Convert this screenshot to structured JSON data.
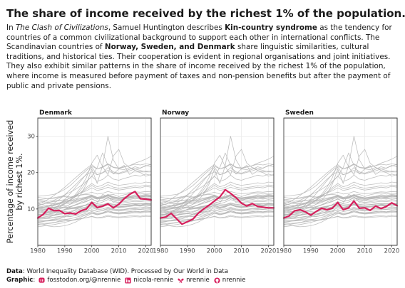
{
  "title": "The share of income received by the richest 1% of the population.",
  "intro": {
    "p1": "In ",
    "book": "The Clash of Civilizations",
    "p2": ", Samuel Huntington describes ",
    "term": "Kin-country syndrome",
    "p3": " as the tendency for countries of a common civilizational background to support each other in international conflicts. The Scandinavian countries of ",
    "countries": "Norway, Sweden, and Denmark",
    "p4": " share linguistic similarities, cultural traditions, and historical ties. Their cooperation is evident in regional organisations and joint initiatives. They also exhibit similar patterns in the share of income received by the richest 1% of the population, where income is measured before payment of taxes and non-pension benefits but after the payment of public and private pensions."
  },
  "footer": {
    "data_label": "Data",
    "data_text": ": World Inequality Database (WID). Processed by Our World in Data",
    "graphic_label": "Graphic",
    "graphic_colon": ":",
    "links": [
      {
        "icon": "mastodon-icon",
        "text": "fosstodon.org/@nrennie"
      },
      {
        "icon": "linkedin-icon",
        "text": "nicola-rennie"
      },
      {
        "icon": "bluesky-icon",
        "text": "nrennie"
      },
      {
        "icon": "github-icon",
        "text": "nrennie"
      }
    ]
  },
  "colors": {
    "highlight": "#d61f5c",
    "background_lines": "#b4b4b4",
    "panel_bg": "#ffffff",
    "grid": "#ebebeb",
    "text": "#1a1a1a"
  },
  "chart_data": {
    "type": "line",
    "title": "The share of income received by the richest 1% of the population.",
    "ylabel": "Percentage of income received by richest 1%.",
    "ylabel_lines": [
      "Percentage of income received",
      "by richest 1%."
    ],
    "xlabel": "",
    "xlim": [
      1980,
      2022
    ],
    "ylim": [
      0,
      35
    ],
    "x_ticks": [
      1980,
      1990,
      2000,
      2010,
      2020
    ],
    "y_ticks": [
      10,
      20,
      30
    ],
    "grid": true,
    "years": [
      1980,
      1982,
      1984,
      1986,
      1988,
      1990,
      1992,
      1994,
      1996,
      1998,
      2000,
      2002,
      2004,
      2006,
      2008,
      2010,
      2012,
      2014,
      2016,
      2018,
      2020,
      2022
    ],
    "panels": [
      {
        "name": "Denmark",
        "values": [
          7.5,
          8.5,
          10.2,
          9.5,
          9.6,
          8.7,
          8.9,
          8.6,
          9.5,
          10.0,
          11.8,
          10.4,
          10.8,
          11.4,
          10.3,
          11.3,
          12.8,
          14.0,
          14.8,
          12.8,
          12.7,
          12.5
        ]
      },
      {
        "name": "Norway",
        "values": [
          7.5,
          7.8,
          8.8,
          7.3,
          5.8,
          6.5,
          7.2,
          8.8,
          10.0,
          11.0,
          12.2,
          13.3,
          15.3,
          14.3,
          13.1,
          11.6,
          10.8,
          11.5,
          10.7,
          10.5,
          10.3,
          10.3
        ]
      },
      {
        "name": "Sweden",
        "values": [
          7.5,
          8.1,
          9.5,
          9.8,
          9.2,
          8.3,
          9.3,
          10.2,
          9.8,
          10.2,
          11.8,
          9.8,
          10.3,
          12.2,
          10.2,
          10.3,
          9.6,
          10.8,
          10.1,
          10.7,
          11.7,
          10.9
        ]
      }
    ],
    "background_series": [
      {
        "values": [
          9.2,
          9.6,
          10.0,
          10.3,
          10.7,
          11.0,
          10.6,
          11.1,
          11.6,
          12.0,
          12.8,
          12.0,
          12.4,
          13.1,
          12.6,
          12.3,
          12.8,
          13.0,
          13.3,
          13.1,
          13.6,
          13.4
        ]
      },
      {
        "values": [
          8.0,
          8.2,
          8.6,
          9.0,
          9.1,
          9.3,
          9.1,
          9.6,
          10.0,
          10.6,
          11.2,
          10.4,
          10.8,
          11.3,
          10.7,
          10.6,
          10.8,
          11.0,
          11.2,
          11.0,
          11.4,
          11.2
        ]
      },
      {
        "values": [
          6.3,
          6.5,
          6.9,
          7.2,
          7.6,
          8.0,
          7.9,
          8.3,
          8.8,
          9.2,
          9.8,
          9.3,
          9.6,
          10.2,
          9.8,
          9.6,
          9.8,
          10.0,
          10.1,
          9.9,
          10.3,
          10.1
        ]
      },
      {
        "values": [
          10.6,
          10.4,
          10.8,
          11.2,
          11.6,
          12.1,
          11.7,
          12.0,
          12.6,
          13.2,
          13.8,
          13.0,
          13.3,
          14.0,
          13.4,
          13.1,
          13.3,
          13.5,
          13.9,
          13.7,
          14.0,
          13.8
        ]
      },
      {
        "values": [
          5.6,
          5.7,
          6.0,
          6.2,
          6.7,
          7.1,
          7.3,
          7.7,
          8.1,
          8.5,
          9.0,
          8.6,
          8.8,
          9.3,
          8.9,
          8.7,
          8.9,
          9.0,
          9.2,
          9.1,
          9.3,
          9.2
        ]
      },
      {
        "values": [
          8.6,
          8.4,
          8.2,
          8.3,
          8.7,
          8.8,
          8.6,
          8.9,
          9.2,
          9.5,
          10.4,
          9.8,
          10.0,
          10.5,
          10.0,
          9.8,
          9.9,
          10.2,
          10.4,
          10.3,
          10.6,
          10.4
        ]
      },
      {
        "values": [
          11.4,
          11.1,
          10.9,
          11.2,
          11.6,
          11.9,
          12.2,
          12.8,
          13.0,
          13.3,
          13.6,
          13.2,
          13.5,
          13.8,
          14.0,
          13.4,
          13.9,
          14.2,
          14.4,
          14.1,
          14.3,
          14.2
        ]
      },
      {
        "values": [
          7.2,
          7.3,
          7.4,
          7.6,
          7.9,
          8.1,
          8.3,
          8.8,
          9.4,
          10.0,
          10.7,
          10.1,
          10.5,
          11.2,
          10.6,
          10.5,
          10.7,
          10.9,
          11.3,
          11.1,
          11.5,
          11.3
        ]
      },
      {
        "values": [
          9.8,
          9.9,
          10.1,
          10.2,
          10.4,
          10.4,
          10.2,
          10.5,
          10.8,
          11.1,
          11.4,
          10.9,
          11.0,
          11.6,
          11.1,
          11.0,
          11.2,
          11.4,
          11.5,
          11.4,
          11.6,
          11.5
        ]
      },
      {
        "values": [
          6.9,
          6.8,
          6.8,
          7.0,
          7.3,
          7.8,
          8.6,
          9.2,
          9.7,
          10.3,
          11.0,
          10.2,
          10.6,
          11.4,
          10.8,
          10.6,
          10.7,
          10.9,
          11.1,
          10.9,
          11.2,
          11.0
        ]
      },
      {
        "values": [
          12.2,
          12.0,
          11.8,
          12.0,
          12.3,
          12.6,
          12.3,
          12.5,
          12.8,
          13.1,
          13.4,
          13.0,
          13.3,
          13.7,
          13.3,
          13.0,
          13.2,
          13.4,
          13.6,
          13.5,
          13.7,
          13.6
        ]
      },
      {
        "values": [
          5.1,
          5.3,
          5.5,
          5.7,
          6.0,
          6.3,
          6.7,
          7.2,
          7.8,
          8.4,
          9.0,
          8.4,
          8.8,
          9.6,
          9.0,
          8.8,
          9.0,
          9.2,
          9.4,
          9.2,
          9.5,
          9.3
        ]
      },
      {
        "values": [
          8.9,
          9.1,
          9.5,
          9.9,
          10.3,
          10.6,
          10.3,
          10.4,
          10.7,
          11.0,
          11.5,
          11.1,
          11.2,
          11.7,
          11.3,
          11.1,
          11.2,
          11.3,
          11.5,
          11.4,
          11.6,
          11.5
        ]
      },
      {
        "values": [
          7.9,
          7.7,
          7.6,
          7.7,
          8.0,
          8.1,
          7.9,
          8.2,
          8.4,
          8.8,
          9.3,
          8.8,
          9.0,
          9.6,
          9.1,
          9.0,
          9.1,
          9.3,
          9.4,
          9.2,
          9.5,
          9.4
        ]
      },
      {
        "values": [
          10.1,
          10.3,
          10.7,
          11.0,
          11.4,
          11.7,
          11.3,
          11.8,
          12.4,
          13.0,
          13.6,
          12.8,
          13.1,
          13.8,
          13.2,
          12.9,
          13.1,
          13.3,
          13.6,
          13.4,
          13.8,
          13.6
        ]
      },
      {
        "values": [
          6.1,
          6.0,
          6.1,
          6.3,
          6.5,
          6.7,
          6.8,
          7.0,
          7.3,
          7.6,
          8.0,
          7.6,
          7.8,
          8.3,
          7.9,
          7.8,
          7.9,
          8.1,
          8.2,
          8.0,
          8.3,
          8.2
        ]
      },
      {
        "values": [
          9.5,
          9.2,
          9.0,
          9.1,
          9.4,
          9.8,
          10.5,
          11.1,
          11.6,
          12.2,
          12.7,
          12.1,
          12.4,
          13.0,
          12.5,
          12.2,
          12.4,
          12.6,
          12.9,
          12.7,
          13.0,
          12.8
        ]
      },
      {
        "values": [
          7.6,
          7.8,
          8.0,
          8.2,
          8.5,
          8.7,
          8.5,
          8.8,
          9.1,
          9.4,
          9.7,
          9.3,
          9.5,
          10.0,
          9.6,
          9.4,
          9.6,
          9.7,
          9.9,
          9.8,
          10.0,
          9.9
        ]
      },
      {
        "values": [
          11.0,
          11.3,
          11.8,
          12.2,
          12.4,
          12.5,
          12.1,
          12.2,
          12.5,
          12.8,
          13.1,
          12.7,
          12.9,
          13.2,
          12.8,
          12.6,
          12.7,
          12.9,
          13.0,
          12.9,
          13.1,
          13.0
        ]
      },
      {
        "values": [
          6.6,
          6.6,
          6.7,
          6.8,
          7.0,
          7.1,
          6.9,
          7.1,
          7.4,
          7.6,
          7.9,
          7.5,
          7.6,
          8.0,
          7.7,
          7.6,
          7.7,
          7.8,
          7.9,
          7.8,
          8.0,
          7.9
        ]
      },
      {
        "values": [
          8.3,
          8.5,
          8.6,
          8.8,
          9.3,
          9.9,
          10.2,
          10.1,
          10.3,
          10.5,
          10.9,
          10.5,
          10.7,
          11.1,
          10.6,
          10.4,
          10.5,
          10.7,
          10.9,
          10.8,
          11.0,
          10.9
        ]
      },
      {
        "values": [
          9.1,
          8.8,
          8.5,
          8.4,
          8.6,
          8.9,
          9.3,
          9.8,
          10.5,
          11.2,
          12.0,
          11.4,
          11.9,
          12.6,
          12.1,
          11.8,
          12.0,
          12.2,
          12.5,
          12.3,
          12.6,
          12.4
        ]
      },
      {
        "values": [
          11.8,
          11.6,
          11.5,
          11.4,
          11.7,
          12.3,
          13.1,
          13.8,
          14.4,
          15.0,
          15.8,
          15.1,
          15.4,
          16.0,
          15.5,
          15.2,
          15.4,
          15.7,
          16.0,
          15.8,
          16.2,
          16.0
        ]
      },
      {
        "values": [
          12.5,
          12.7,
          12.9,
          13.1,
          13.4,
          13.6,
          13.3,
          13.5,
          13.9,
          14.2,
          14.6,
          14.1,
          14.3,
          14.8,
          14.4,
          14.2,
          14.3,
          14.5,
          14.7,
          14.6,
          14.8,
          14.7
        ]
      },
      {
        "values": [
          13.2,
          13.0,
          12.8,
          12.9,
          13.2,
          13.4,
          13.0,
          13.4,
          13.8,
          14.0,
          13.8,
          13.2,
          13.1,
          13.6,
          13.0,
          12.8,
          12.9,
          13.1,
          13.3,
          13.2,
          13.4,
          13.3
        ]
      },
      {
        "values": [
          10.9,
          10.6,
          10.4,
          10.5,
          10.8,
          11.4,
          12.3,
          13.4,
          14.6,
          15.9,
          17.0,
          16.1,
          16.6,
          17.4,
          16.8,
          16.5,
          16.7,
          16.9,
          17.2,
          17.0,
          17.4,
          17.2
        ]
      },
      {
        "values": [
          5.8,
          5.6,
          5.3,
          5.1,
          5.2,
          5.4,
          5.8,
          6.4,
          7.2,
          8.0,
          8.8,
          8.4,
          8.7,
          9.2,
          8.8,
          8.6,
          8.7,
          8.8,
          9.0,
          8.9,
          9.1,
          9.0
        ]
      },
      {
        "values": [
          7.4,
          7.5,
          7.7,
          8.3,
          9.1,
          9.9,
          10.6,
          11.2,
          11.9,
          12.6,
          13.4,
          12.7,
          13.0,
          13.6,
          13.1,
          12.8,
          13.0,
          13.2,
          13.4,
          13.3,
          13.6,
          13.4
        ]
      },
      {
        "values": [
          9.4,
          9.7,
          10.2,
          10.9,
          11.6,
          12.3,
          13.0,
          13.7,
          14.5,
          15.4,
          16.5,
          15.6,
          15.9,
          16.7,
          16.0,
          15.7,
          15.9,
          16.1,
          16.4,
          16.2,
          16.6,
          16.4
        ]
      },
      {
        "values": [
          12.6,
          12.3,
          12.1,
          12.4,
          13.1,
          13.9,
          14.6,
          15.4,
          16.4,
          17.6,
          19.0,
          17.6,
          18.1,
          19.3,
          18.2,
          17.9,
          18.4,
          18.8,
          19.3,
          19.0,
          19.6,
          19.2
        ]
      },
      {
        "values": [
          8.2,
          8.6,
          9.2,
          10.0,
          11.2,
          12.6,
          14.2,
          16.0,
          17.8,
          19.6,
          21.5,
          19.4,
          19.9,
          21.4,
          20.2,
          19.8,
          20.4,
          20.9,
          21.6,
          21.2,
          22.0,
          21.6
        ]
      },
      {
        "values": [
          10.3,
          10.5,
          10.9,
          11.6,
          12.6,
          13.9,
          15.3,
          16.7,
          18.2,
          19.4,
          20.2,
          19.4,
          20.0,
          20.6,
          19.8,
          19.6,
          20.1,
          20.5,
          21.0,
          21.3,
          21.8,
          22.3
        ]
      },
      {
        "values": [
          11.3,
          11.9,
          12.7,
          13.7,
          14.8,
          16.0,
          17.3,
          18.6,
          19.9,
          21.1,
          22.2,
          21.0,
          21.4,
          22.3,
          21.4,
          21.1,
          21.5,
          21.9,
          22.6,
          23.1,
          23.7,
          24.5
        ]
      },
      {
        "values": [
          13.5,
          13.6,
          13.8,
          14.0,
          14.6,
          15.4,
          16.4,
          17.8,
          19.3,
          20.6,
          21.8,
          21.0,
          21.6,
          22.4,
          21.5,
          21.3,
          21.6,
          21.9,
          22.3,
          22.1,
          22.4,
          22.2
        ]
      },
      {
        "values": [
          8.8,
          8.9,
          9.1,
          9.3,
          9.5,
          9.7,
          10.0,
          10.2,
          10.6,
          11.2,
          12.0,
          11.6,
          14.0,
          13.4,
          11.8,
          11.5,
          11.7,
          11.9,
          12.1,
          12.0,
          12.2,
          12.1
        ]
      },
      {
        "values": [
          9.6,
          9.4,
          9.3,
          9.5,
          10.0,
          10.5,
          11.3,
          12.4,
          14.1,
          16.8,
          21.0,
          17.0,
          22.0,
          30.0,
          23.5,
          21.0,
          22.0,
          19.5,
          20.5,
          20.0,
          19.0,
          19.5
        ]
      },
      {
        "values": [
          8.4,
          8.6,
          9.0,
          9.6,
          10.4,
          11.4,
          12.6,
          14.0,
          16.0,
          18.6,
          22.6,
          24.8,
          21.6,
          19.4,
          24.6,
          26.4,
          22.6,
          21.4,
          21.0,
          20.6,
          20.2,
          20.4
        ]
      },
      {
        "values": [
          10.2,
          10.0,
          10.1,
          10.4,
          10.9,
          11.6,
          12.4,
          13.5,
          15.3,
          17.4,
          19.0,
          21.4,
          25.4,
          22.0,
          19.6,
          21.0,
          20.8,
          21.4,
          20.6,
          20.2,
          20.4,
          20.3
        ]
      }
    ]
  }
}
